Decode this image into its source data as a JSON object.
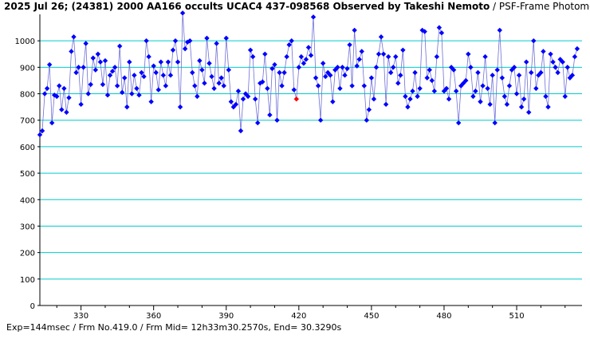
{
  "title": {
    "main": "2025 Jul 26; (24381) 2000 AA166 occults UCAC4 437-098568 Observed by Takeshi Nemoto",
    "method": " / PSF-Frame Photometry /"
  },
  "footer": "Exp=144msec / Frm No.419.0 / Frm Mid= 12h33m30.2570s,  End= 30.3290s",
  "colors": {
    "series": "#0000ff",
    "highlight": "#ff0000",
    "line": "#6f6fd8",
    "grid": "#00cccc",
    "axis": "#000000"
  },
  "chart_data": {
    "type": "line",
    "title": "2025 Jul 26; (24381) 2000 AA166 occults UCAC4 437-098568 Observed by Takeshi Nemoto / PSF-Frame Photometry /",
    "xlabel": "",
    "ylabel": "",
    "xlim": [
      313,
      537
    ],
    "ylim": [
      0,
      1100
    ],
    "y_ticks": [
      0,
      100,
      200,
      300,
      400,
      500,
      600,
      700,
      800,
      900,
      1000
    ],
    "x_ticks": [
      330,
      360,
      390,
      420,
      450,
      480,
      510
    ],
    "grid": "horizontal",
    "legend": "none",
    "highlight_frame": 419,
    "series": [
      {
        "x_start": 313,
        "x_step": 1,
        "values": [
          645,
          660,
          800,
          820,
          910,
          690,
          795,
          790,
          830,
          740,
          820,
          730,
          785,
          960,
          1015,
          880,
          900,
          760,
          900,
          990,
          800,
          835,
          935,
          890,
          950,
          920,
          835,
          925,
          795,
          870,
          885,
          900,
          830,
          980,
          805,
          860,
          750,
          920,
          800,
          870,
          820,
          795,
          880,
          865,
          1000,
          940,
          770,
          905,
          880,
          815,
          920,
          870,
          830,
          920,
          870,
          965,
          1000,
          920,
          750,
          1105,
          970,
          995,
          1000,
          880,
          830,
          790,
          925,
          890,
          840,
          1010,
          915,
          865,
          820,
          990,
          840,
          860,
          830,
          1010,
          890,
          770,
          750,
          760,
          810,
          660,
          780,
          800,
          790,
          965,
          940,
          780,
          690,
          840,
          845,
          950,
          820,
          720,
          895,
          910,
          700,
          880,
          830,
          880,
          940,
          985,
          1000,
          815,
          780,
          900,
          940,
          915,
          930,
          975,
          945,
          1090,
          860,
          830,
          700,
          915,
          865,
          880,
          870,
          770,
          890,
          900,
          820,
          900,
          870,
          895,
          985,
          830,
          1040,
          905,
          930,
          960,
          830,
          700,
          740,
          860,
          780,
          900,
          950,
          1015,
          950,
          760,
          940,
          880,
          900,
          940,
          840,
          870,
          965,
          790,
          750,
          780,
          810,
          880,
          790,
          820,
          1040,
          1035,
          860,
          890,
          850,
          810,
          940,
          1050,
          1030,
          810,
          820,
          780,
          900,
          890,
          810,
          690,
          830,
          840,
          850,
          950,
          900,
          790,
          810,
          880,
          770,
          830,
          940,
          820,
          760,
          870,
          690,
          890,
          1040,
          860,
          790,
          760,
          830,
          890,
          900,
          800,
          870,
          750,
          780,
          920,
          730,
          880,
          1000,
          820,
          870,
          880,
          960,
          790,
          750,
          950,
          920,
          900,
          880,
          930,
          920,
          790,
          900,
          860,
          870,
          940,
          970
        ]
      }
    ]
  }
}
